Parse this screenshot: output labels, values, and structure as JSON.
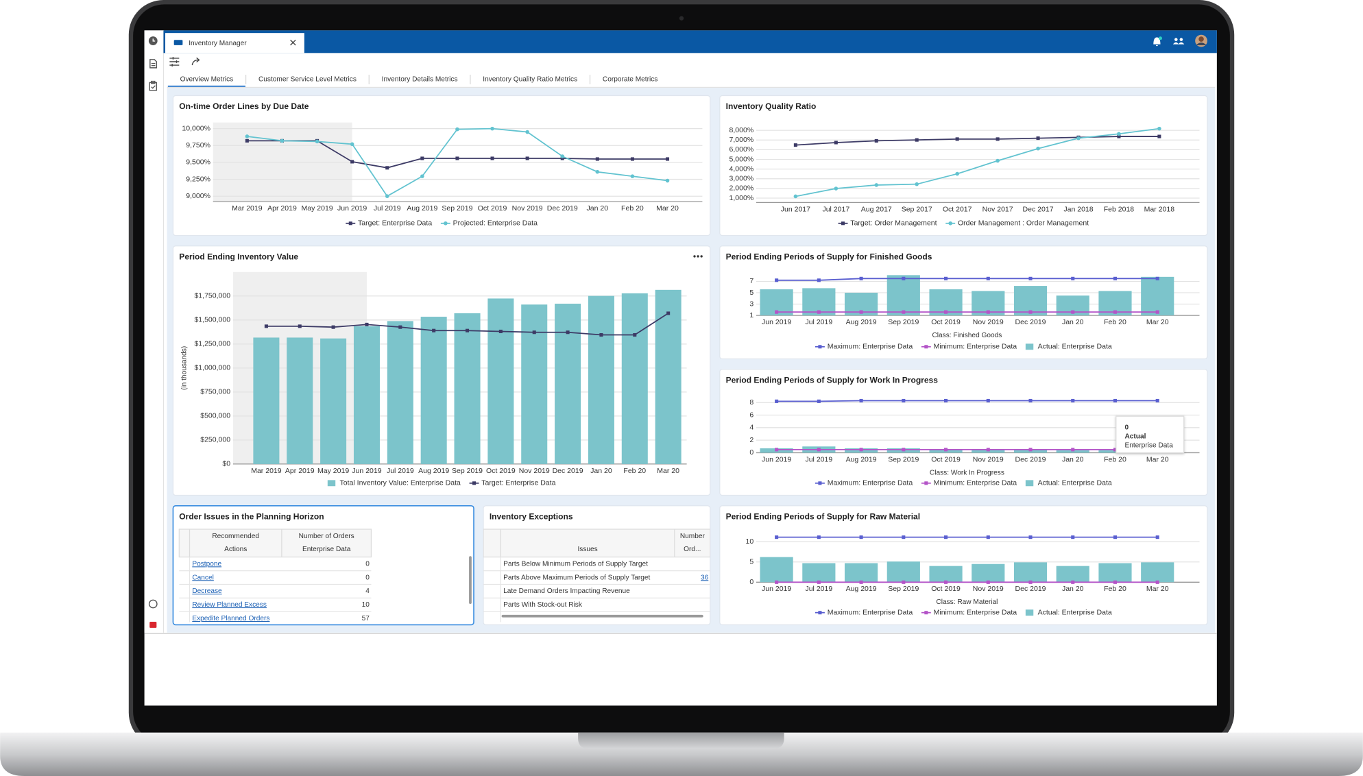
{
  "app": {
    "tab_title": "Inventory Manager"
  },
  "tabs": [
    "Overview Metrics",
    "Customer Service Level Metrics",
    "Inventory Details Metrics",
    "Inventory Quality Ratio Metrics",
    "Corporate Metrics"
  ],
  "selected_tab": 0,
  "chart_data": [
    {
      "type": "line",
      "title": "On-time Order Lines by Due Date",
      "categories": [
        "Mar 2019",
        "Apr 2019",
        "May 2019",
        "Jun 2019",
        "Jul 2019",
        "Aug 2019",
        "Sep 2019",
        "Oct 2019",
        "Nov 2019",
        "Dec 2019",
        "Jan 20",
        "Feb 20",
        "Mar 20"
      ],
      "series": [
        {
          "name": "Target: Enterprise Data",
          "color": "#3d3b66",
          "marker": "square",
          "values": [
            9820,
            9820,
            9820,
            9510,
            9420,
            9560,
            9560,
            9560,
            9560,
            9560,
            9550,
            9550,
            9550
          ]
        },
        {
          "name": "Projected: Enterprise Data",
          "color": "#62c3d0",
          "marker": "circle",
          "values": [
            9885,
            9820,
            9810,
            9770,
            9000,
            9295,
            9990,
            10000,
            9950,
            9590,
            9360,
            9295,
            9230
          ]
        }
      ],
      "ylim": [
        8920,
        10090
      ],
      "yticks": [
        {
          "value": 9000,
          "label": "9,000%"
        },
        {
          "value": 9250,
          "label": "9,250%"
        },
        {
          "value": 9500,
          "label": "9,500%"
        },
        {
          "value": 9750,
          "label": "9,750%"
        },
        {
          "value": 10000,
          "label": "10,000%"
        }
      ],
      "grid": true
    },
    {
      "type": "line",
      "title": "Inventory Quality Ratio",
      "categories": [
        "Jun 2017",
        "Jul 2017",
        "Aug 2017",
        "Sep 2017",
        "Oct 2017",
        "Nov 2017",
        "Dec 2017",
        "Jan 2018",
        "Feb 2018",
        "Mar 2018"
      ],
      "series": [
        {
          "name": "Target: Order Management",
          "color": "#3d3b66",
          "marker": "square",
          "values": [
            6480,
            6740,
            6920,
            7010,
            7100,
            7100,
            7190,
            7280,
            7370,
            7370
          ]
        },
        {
          "name": "Order Management : Order Management",
          "color": "#62c3d0",
          "marker": "circle",
          "values": [
            1180,
            1990,
            2350,
            2440,
            3510,
            4860,
            6120,
            7190,
            7640,
            8180
          ]
        }
      ],
      "ylim": [
        550,
        8630
      ],
      "yticks": [
        {
          "value": 1000,
          "label": "1,000%"
        },
        {
          "value": 2000,
          "label": "2,000%"
        },
        {
          "value": 3000,
          "label": "3,000%"
        },
        {
          "value": 4000,
          "label": "4,000%"
        },
        {
          "value": 5000,
          "label": "5,000%"
        },
        {
          "value": 6000,
          "label": "6,000%"
        },
        {
          "value": 7000,
          "label": "7,000%"
        },
        {
          "value": 8000,
          "label": "8,000%"
        }
      ],
      "grid": true
    },
    {
      "type": "combo",
      "title": "Period Ending Inventory Value",
      "y_axis_title": "(in thousands)",
      "categories": [
        "Mar 2019",
        "Apr 2019",
        "May 2019",
        "Jun 2019",
        "Jul 2019",
        "Aug 2019",
        "Sep 2019",
        "Oct 2019",
        "Nov 2019",
        "Dec 2019",
        "Jan 20",
        "Feb 20",
        "Mar 20"
      ],
      "series": [
        {
          "name": "Total Inventory Value: Enterprise Data",
          "type": "bar",
          "color": "#7cc4cb",
          "values": [
            1317000,
            1317000,
            1308000,
            1435000,
            1489000,
            1534000,
            1570000,
            1724000,
            1661000,
            1670000,
            1751000,
            1778000,
            1814000
          ]
        },
        {
          "name": "Target: Enterprise Data",
          "type": "line",
          "marker": "square",
          "color": "#3d3b66",
          "values": [
            1435000,
            1435000,
            1426000,
            1453000,
            1426000,
            1390000,
            1390000,
            1381000,
            1372000,
            1372000,
            1345000,
            1345000,
            1570000
          ]
        }
      ],
      "ylim": [
        0,
        2000000
      ],
      "yticks": [
        {
          "value": 0,
          "label": "$0"
        },
        {
          "value": 250000,
          "label": "$250,000"
        },
        {
          "value": 500000,
          "label": "$500,000"
        },
        {
          "value": 750000,
          "label": "$750,000"
        },
        {
          "value": 1000000,
          "label": "$1,000,000"
        },
        {
          "value": 1250000,
          "label": "$1,250,000"
        },
        {
          "value": 1500000,
          "label": "$1,500,000"
        },
        {
          "value": 1750000,
          "label": "$1,750,000"
        }
      ],
      "grid": true
    },
    {
      "type": "combo",
      "title": "Period Ending Periods of Supply for Finished Goods",
      "x_axis_title": "Class: Finished Goods",
      "categories": [
        "Jun 2019",
        "Jul 2019",
        "Aug 2019",
        "Sep 2019",
        "Oct 2019",
        "Nov 2019",
        "Dec 2019",
        "Jan 20",
        "Feb 20",
        "Mar 20"
      ],
      "series": [
        {
          "name": "Maximum: Enterprise Data",
          "type": "line",
          "marker": "square",
          "color": "#5a5fd0",
          "values": [
            7.2,
            7.2,
            7.5,
            7.5,
            7.5,
            7.5,
            7.5,
            7.5,
            7.5,
            7.5
          ]
        },
        {
          "name": "Minimum: Enterprise Data",
          "type": "line",
          "marker": "square",
          "color": "#b455c8",
          "values": [
            1.6,
            1.6,
            1.6,
            1.6,
            1.6,
            1.6,
            1.6,
            1.6,
            1.6,
            1.6
          ]
        },
        {
          "name": "Actual: Enterprise Data",
          "type": "bar",
          "color": "#7cc4cb",
          "values": [
            5.6,
            5.8,
            5.0,
            8.1,
            5.6,
            5.3,
            6.2,
            4.5,
            5.3,
            7.8
          ]
        }
      ],
      "ylim": [
        1,
        8.5
      ],
      "yticks": [
        1,
        3,
        5,
        7
      ],
      "grid": true
    },
    {
      "type": "combo",
      "title": "Period Ending Periods of Supply for Work In Progress",
      "x_axis_title": "Class: Work In Progress",
      "categories": [
        "Jun 2019",
        "Jul 2019",
        "Aug 2019",
        "Sep 2019",
        "Oct 2019",
        "Nov 2019",
        "Dec 2019",
        "Jan 20",
        "Feb 20",
        "Mar 20"
      ],
      "series": [
        {
          "name": "Maximum: Enterprise Data",
          "type": "line",
          "marker": "square",
          "color": "#5a5fd0",
          "values": [
            8.2,
            8.2,
            8.3,
            8.3,
            8.3,
            8.3,
            8.3,
            8.3,
            8.3,
            8.3
          ]
        },
        {
          "name": "Minimum: Enterprise Data",
          "type": "line",
          "marker": "square",
          "color": "#b455c8",
          "values": [
            0.5,
            0.5,
            0.5,
            0.5,
            0.5,
            0.5,
            0.5,
            0.5,
            0.5,
            0.5
          ]
        },
        {
          "name": "Actual: Enterprise Data",
          "type": "bar",
          "color": "#7cc4cb",
          "values": [
            0.7,
            1.0,
            0.7,
            0.7,
            0.55,
            0.55,
            0.55,
            0.4,
            0.4,
            0.4
          ]
        }
      ],
      "ylim": [
        0,
        9
      ],
      "yticks": [
        0,
        2,
        4,
        6,
        8
      ],
      "grid": true,
      "tooltip": {
        "value": 0,
        "series": "Actual",
        "source": "Enterprise Data"
      }
    },
    {
      "type": "combo",
      "title": "Period Ending Periods of Supply for Raw Material",
      "x_axis_title": "Class: Raw Material",
      "categories": [
        "Jun 2019",
        "Jul 2019",
        "Aug 2019",
        "Sep 2019",
        "Oct 2019",
        "Nov 2019",
        "Dec 2019",
        "Jan 20",
        "Feb 20",
        "Mar 20"
      ],
      "series": [
        {
          "name": "Maximum: Enterprise Data",
          "type": "line",
          "marker": "square",
          "color": "#5a5fd0",
          "values": [
            11.1,
            11.1,
            11.1,
            11.1,
            11.1,
            11.1,
            11.1,
            11.1,
            11.1,
            11.1
          ]
        },
        {
          "name": "Minimum: Enterprise Data",
          "type": "line",
          "marker": "square",
          "color": "#b455c8",
          "values": [
            0,
            0,
            0,
            0,
            0,
            0,
            0,
            0,
            0,
            0
          ]
        },
        {
          "name": "Actual: Enterprise Data",
          "type": "bar",
          "color": "#7cc4cb",
          "values": [
            6.2,
            4.7,
            4.7,
            5.1,
            4.0,
            4.5,
            4.9,
            4.0,
            4.7,
            4.9
          ]
        }
      ],
      "ylim": [
        0,
        12
      ],
      "yticks": [
        0,
        5,
        10
      ],
      "grid": true
    }
  ],
  "tables": [
    {
      "title": "Order Issues in the Planning Horizon",
      "link_column": 0,
      "header": [
        [
          "Recommended",
          "Actions"
        ],
        [
          "Number of Orders",
          "Enterprise Data"
        ]
      ],
      "rows": [
        [
          "Postpone",
          0
        ],
        [
          "Cancel",
          0
        ],
        [
          "Decrease",
          4
        ],
        [
          "Review Planned Excess",
          10
        ],
        [
          "Expedite Planned Orders",
          57
        ]
      ]
    },
    {
      "title": "Inventory Exceptions",
      "link_column": 1,
      "header": [
        [
          "Issues"
        ],
        [
          "Number",
          "Ord..."
        ]
      ],
      "rows": [
        [
          "Parts Below Minimum Periods of Supply Target"
        ],
        [
          "Parts Above Maximum Periods of Supply Target",
          36
        ],
        [
          "Late Demand Orders Impacting Revenue"
        ],
        [
          "Parts With Stock-out Risk"
        ]
      ]
    }
  ]
}
